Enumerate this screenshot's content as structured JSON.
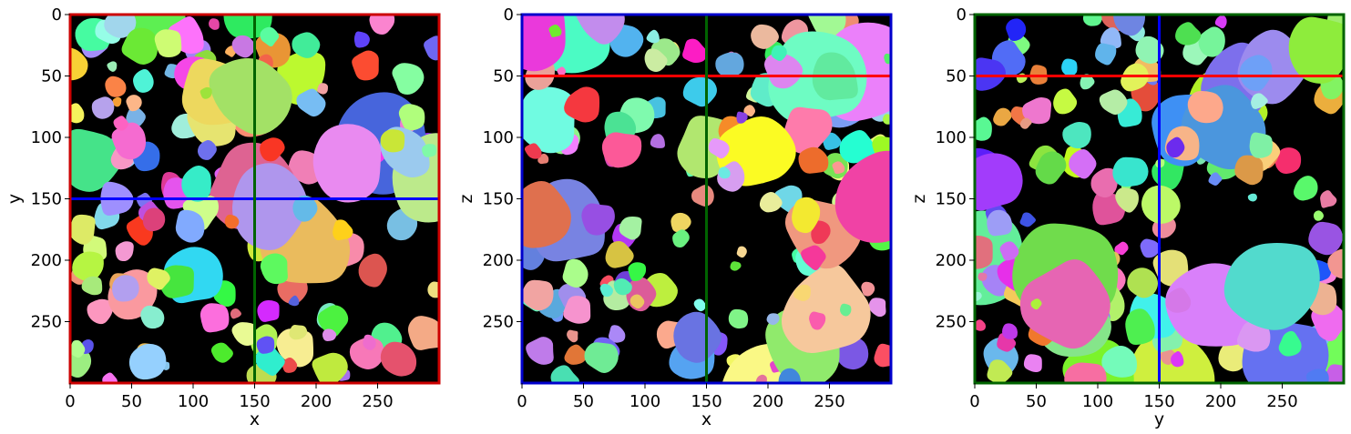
{
  "figure": {
    "panels": [
      {
        "xlabel": "x",
        "ylabel": "y",
        "xticks": [
          "0",
          "50",
          "100",
          "150",
          "200",
          "250"
        ],
        "yticks": [
          "0",
          "50",
          "100",
          "150",
          "200",
          "250"
        ],
        "frame_color": "#cc0000",
        "hline": {
          "value": 150,
          "color": "#0000ff"
        },
        "vline": {
          "value": 150,
          "color": "#006400"
        },
        "seed": 11
      },
      {
        "xlabel": "x",
        "ylabel": "z",
        "xticks": [
          "0",
          "50",
          "100",
          "150",
          "200",
          "250"
        ],
        "yticks": [
          "0",
          "50",
          "100",
          "150",
          "200",
          "250"
        ],
        "frame_color": "#0000cc",
        "hline": {
          "value": 50,
          "color": "#ff0000"
        },
        "vline": {
          "value": 150,
          "color": "#006400"
        },
        "seed": 23
      },
      {
        "xlabel": "y",
        "ylabel": "z",
        "xticks": [
          "0",
          "50",
          "100",
          "150",
          "200",
          "250"
        ],
        "yticks": [
          "0",
          "50",
          "100",
          "150",
          "200",
          "250"
        ],
        "frame_color": "#006400",
        "hline": {
          "value": 50,
          "color": "#ff0000"
        },
        "vline": {
          "value": 150,
          "color": "#0000ff"
        },
        "seed": 37
      }
    ]
  },
  "chart_data": [
    {
      "type": "heatmap",
      "title": "",
      "xlabel": "x",
      "ylabel": "y",
      "xlim": [
        0,
        300
      ],
      "ylim": [
        300,
        0
      ],
      "xticks": [
        0,
        50,
        100,
        150,
        200,
        250
      ],
      "yticks": [
        0,
        50,
        100,
        150,
        200,
        250
      ],
      "crosshair": {
        "x": 150,
        "y": 150
      },
      "background": "#000000",
      "content": "random-colour instance segmentation label map"
    },
    {
      "type": "heatmap",
      "title": "",
      "xlabel": "x",
      "ylabel": "z",
      "xlim": [
        0,
        300
      ],
      "ylim": [
        300,
        0
      ],
      "xticks": [
        0,
        50,
        100,
        150,
        200,
        250
      ],
      "yticks": [
        0,
        50,
        100,
        150,
        200,
        250
      ],
      "crosshair": {
        "x": 150,
        "z": 50
      },
      "background": "#000000",
      "content": "random-colour instance segmentation label map"
    },
    {
      "type": "heatmap",
      "title": "",
      "xlabel": "y",
      "ylabel": "z",
      "xlim": [
        0,
        300
      ],
      "ylim": [
        300,
        0
      ],
      "xticks": [
        0,
        50,
        100,
        150,
        200,
        250
      ],
      "yticks": [
        0,
        50,
        100,
        150,
        200,
        250
      ],
      "crosshair": {
        "y": 150,
        "z": 50
      },
      "background": "#000000",
      "content": "random-colour instance segmentation label map"
    }
  ]
}
